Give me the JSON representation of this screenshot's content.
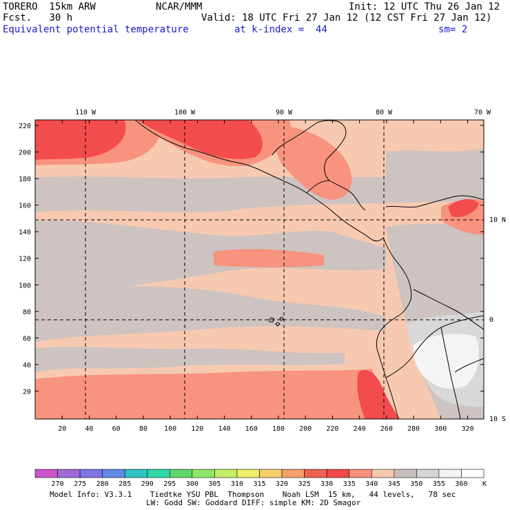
{
  "header": {
    "model": "TORERO  15km ARW",
    "org": "NCAR/MMM",
    "init": "Init: 12 UTC Thu 26 Jan 12",
    "fcst": "Fcst.   30 h",
    "valid": "Valid: 18 UTC Fri 27 Jan 12 (12 CST Fri 27 Jan 12)",
    "field": "Equivalent potential temperature",
    "level": "at k-index =  44",
    "smooth": "sm= 2"
  },
  "axes": {
    "lon_labels": [
      "110 W",
      "100 W",
      "90 W",
      "80 W",
      "70 W"
    ],
    "lat_labels": [
      "10 N",
      "0",
      "10 S"
    ],
    "y_ticks": [
      "220",
      "200",
      "180",
      "160",
      "140",
      "120",
      "100",
      "80",
      "60",
      "40",
      "20"
    ],
    "x_ticks": [
      "20",
      "40",
      "60",
      "80",
      "100",
      "120",
      "140",
      "160",
      "180",
      "200",
      "220",
      "240",
      "260",
      "280",
      "300",
      "320"
    ]
  },
  "colorbar": {
    "labels": [
      "270",
      "275",
      "280",
      "285",
      "290",
      "295",
      "300",
      "305",
      "310",
      "315",
      "320",
      "325",
      "330",
      "335",
      "340",
      "345",
      "350",
      "355",
      "360"
    ],
    "unit": "K",
    "colors": [
      "#cc55cc",
      "#a06ad6",
      "#7f74e6",
      "#5f8ae8",
      "#2ec4c4",
      "#2ed6a8",
      "#5fd66a",
      "#8ee66a",
      "#c6ee6a",
      "#eeee6a",
      "#f6d06a",
      "#f6a06a",
      "#f06050",
      "#f24848",
      "#f7907c",
      "#f6c8b0",
      "#c8c0be",
      "#d6d6d6",
      "#f4f4f4",
      "#ffffff"
    ]
  },
  "map_colors": {
    "bg": "#f7c9b1",
    "band": "#cdc3c0",
    "warm": "#f7937e",
    "hot": "#f24c4c",
    "light": "#d8d8d8",
    "white": "#f4f4f4"
  },
  "footer": {
    "line1": "Model Info: V3.3.1    Tiedtke YSU PBL  Thompson    Noah LSM  15 km,   44 levels,   78 sec",
    "line2": "LW: Godd SW: Goddard DIFF: simple KM: 2D Smagor"
  }
}
